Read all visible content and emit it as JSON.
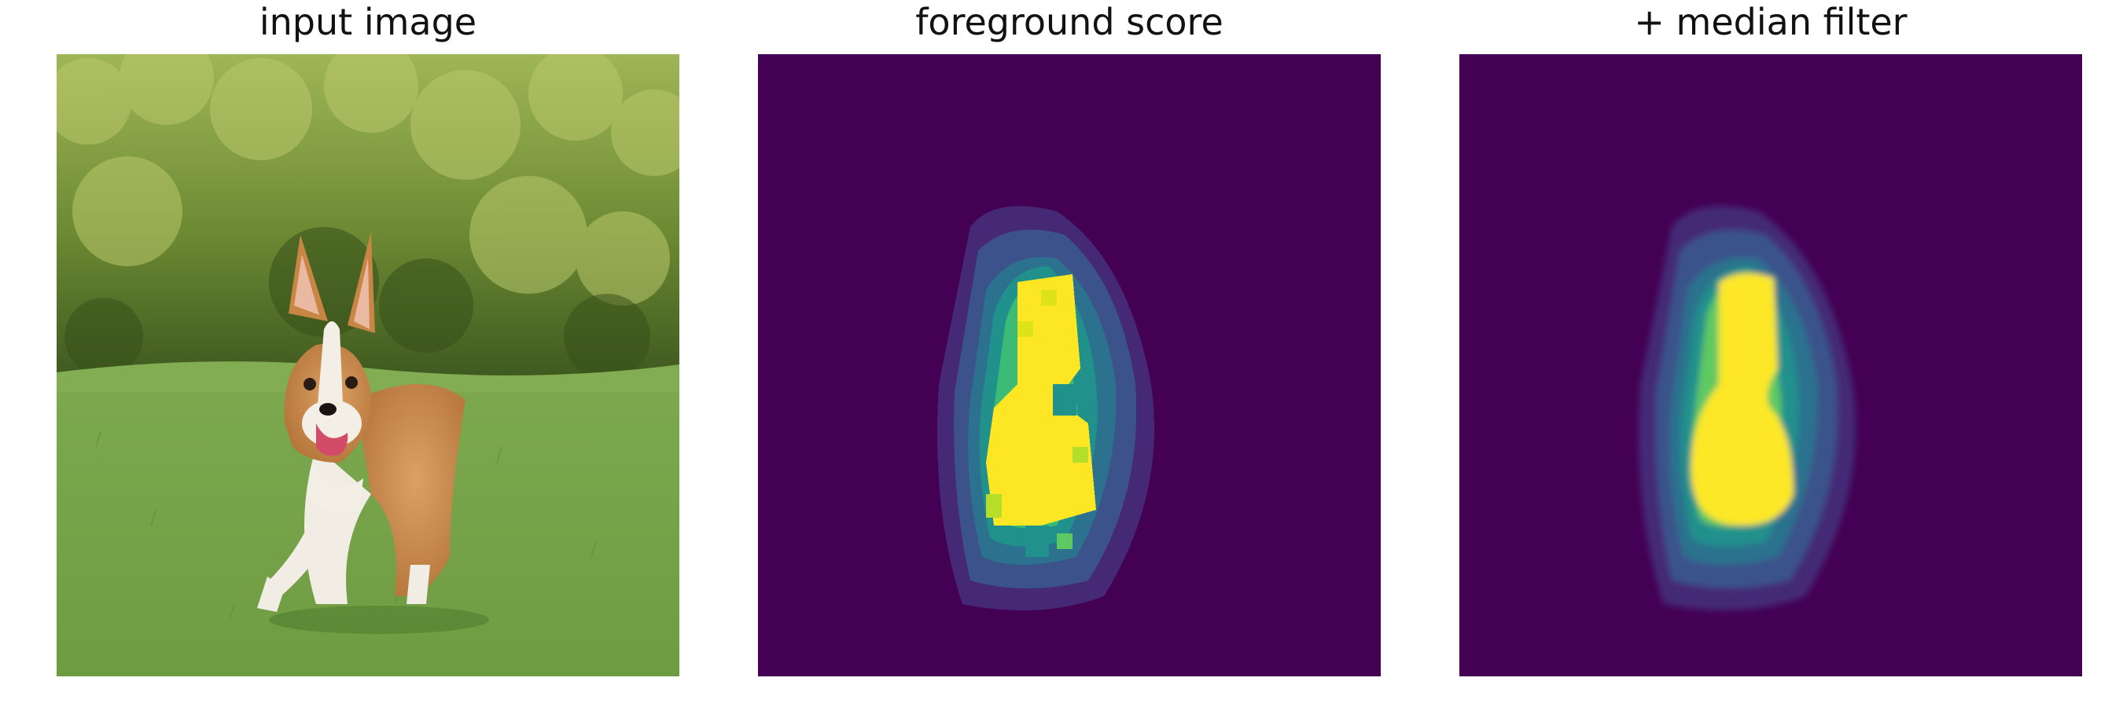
{
  "figure": {
    "panels": [
      {
        "title": "input image"
      },
      {
        "title": "foreground score"
      },
      {
        "title": "+ median filter"
      }
    ]
  },
  "colors": {
    "viridis_low": "#440154",
    "viridis_mid_blue": "#3b528b",
    "viridis_teal": "#21918c",
    "viridis_green": "#5ec962",
    "viridis_high": "#fde725",
    "grass": "#7ba84f",
    "hedge": "#7f9a3a",
    "dog_fur": "#c98a45"
  }
}
